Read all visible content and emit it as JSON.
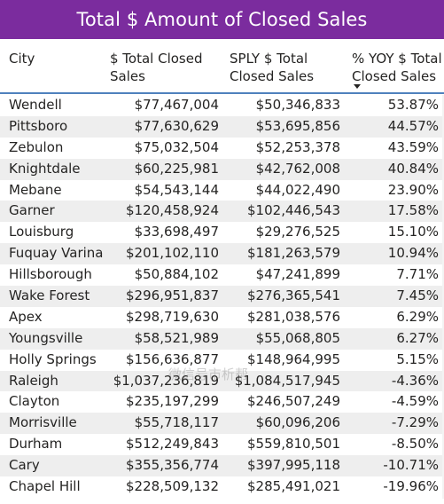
{
  "title": "Total $ Amount of Closed Sales",
  "columns": {
    "city": "City",
    "total": "$ Total Closed Sales",
    "sply": "SPLY $ Total Closed Sales",
    "yoy": "% YOY $ Total Closed Sales"
  },
  "sort": {
    "column": "yoy",
    "direction": "descending",
    "icon": "sort-down-icon"
  },
  "rows": [
    {
      "city": "Wendell",
      "total": "$77,467,004",
      "sply": "$50,346,833",
      "yoy": "53.87%"
    },
    {
      "city": "Pittsboro",
      "total": "$77,630,629",
      "sply": "$53,695,856",
      "yoy": "44.57%"
    },
    {
      "city": "Zebulon",
      "total": "$75,032,504",
      "sply": "$52,253,378",
      "yoy": "43.59%"
    },
    {
      "city": "Knightdale",
      "total": "$60,225,981",
      "sply": "$42,762,008",
      "yoy": "40.84%"
    },
    {
      "city": "Mebane",
      "total": "$54,543,144",
      "sply": "$44,022,490",
      "yoy": "23.90%"
    },
    {
      "city": "Garner",
      "total": "$120,458,924",
      "sply": "$102,446,543",
      "yoy": "17.58%"
    },
    {
      "city": "Louisburg",
      "total": "$33,698,497",
      "sply": "$29,276,525",
      "yoy": "15.10%"
    },
    {
      "city": "Fuquay Varina",
      "total": "$201,102,110",
      "sply": "$181,263,579",
      "yoy": "10.94%"
    },
    {
      "city": "Hillsborough",
      "total": "$50,884,102",
      "sply": "$47,241,899",
      "yoy": "7.71%"
    },
    {
      "city": "Wake Forest",
      "total": "$296,951,837",
      "sply": "$276,365,541",
      "yoy": "7.45%"
    },
    {
      "city": "Apex",
      "total": "$298,719,630",
      "sply": "$281,038,576",
      "yoy": "6.29%"
    },
    {
      "city": "Youngsville",
      "total": "$58,521,989",
      "sply": "$55,068,805",
      "yoy": "6.27%"
    },
    {
      "city": "Holly Springs",
      "total": "$156,636,877",
      "sply": "$148,964,995",
      "yoy": "5.15%"
    },
    {
      "city": "Raleigh",
      "total": "$1,037,236,819",
      "sply": "$1,084,517,945",
      "yoy": "-4.36%"
    },
    {
      "city": "Clayton",
      "total": "$235,197,299",
      "sply": "$246,507,249",
      "yoy": "-4.59%"
    },
    {
      "city": "Morrisville",
      "total": "$55,718,117",
      "sply": "$60,096,206",
      "yoy": "-7.29%"
    },
    {
      "city": "Durham",
      "total": "$512,249,843",
      "sply": "$559,810,501",
      "yoy": "-8.50%"
    },
    {
      "city": "Cary",
      "total": "$355,356,774",
      "sply": "$397,995,118",
      "yoy": "-10.71%"
    },
    {
      "city": "Chapel Hill",
      "total": "$228,509,132",
      "sply": "$285,491,021",
      "yoy": "-19.96%"
    }
  ],
  "watermark": "微信号市析帮",
  "colors": {
    "title_bg": "#7b2c9e",
    "header_rule": "#4f81bd",
    "alt_row": "#eeeeee"
  }
}
